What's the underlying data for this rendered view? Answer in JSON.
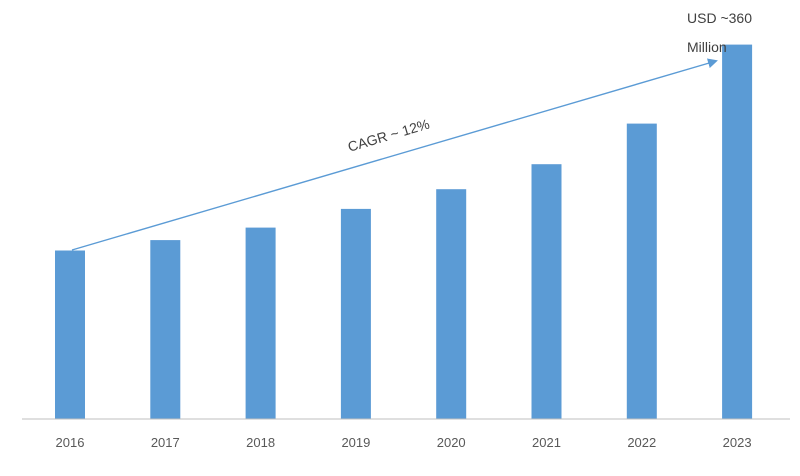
{
  "chart_data": {
    "type": "bar",
    "title": "",
    "xlabel": "",
    "ylabel": "",
    "categories": [
      "2016",
      "2017",
      "2018",
      "2019",
      "2020",
      "2021",
      "2022",
      "2023"
    ],
    "values": [
      162,
      172,
      184,
      202,
      221,
      245,
      284,
      360
    ],
    "ylim": [
      0,
      400
    ],
    "grid": false,
    "legend": "none",
    "bar_color": "#5B9BD5",
    "axis_color": "#BFBFBF",
    "arrow_color": "#5B9BD5",
    "annotations": {
      "cagr": "CAGR ~ 12%",
      "end_value_line1": "USD ~360",
      "end_value_line2": "Million"
    }
  }
}
